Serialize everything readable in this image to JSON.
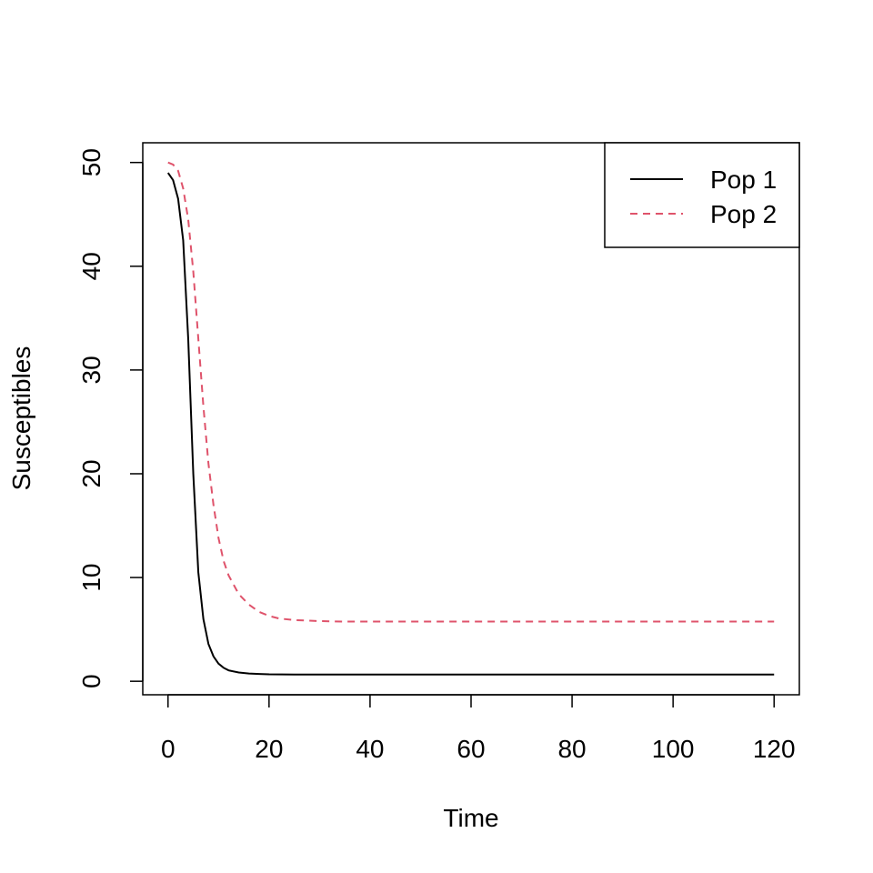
{
  "chart_data": {
    "type": "line",
    "title": "",
    "xlabel": "Time",
    "ylabel": "Susceptibles",
    "xlim": [
      -5,
      125
    ],
    "ylim": [
      -1.3,
      51.9
    ],
    "x_ticks": [
      0,
      20,
      40,
      60,
      80,
      100,
      120
    ],
    "y_ticks": [
      0,
      10,
      20,
      30,
      40,
      50
    ],
    "grid": false,
    "legend": {
      "position": "top-right"
    },
    "series": [
      {
        "name": "Pop 1",
        "color": "#000000",
        "dash": "solid",
        "x": [
          0,
          1,
          2,
          3,
          4,
          5,
          6,
          7,
          8,
          9,
          10,
          11,
          12,
          14,
          16,
          18,
          20,
          25,
          30,
          40,
          60,
          80,
          100,
          120
        ],
        "y": [
          49,
          48.3,
          46.5,
          42.5,
          33,
          20,
          10.5,
          6,
          3.6,
          2.4,
          1.7,
          1.3,
          1.05,
          0.85,
          0.75,
          0.7,
          0.67,
          0.65,
          0.65,
          0.65,
          0.65,
          0.65,
          0.65,
          0.65
        ]
      },
      {
        "name": "Pop 2",
        "color": "#df536b",
        "dash": "dashed",
        "x": [
          0,
          1,
          2,
          3,
          4,
          5,
          6,
          7,
          8,
          9,
          10,
          11,
          12,
          14,
          16,
          18,
          20,
          22,
          25,
          30,
          35,
          40,
          60,
          80,
          100,
          120
        ],
        "y": [
          50,
          49.8,
          49.2,
          47.5,
          44.5,
          39.5,
          33,
          26.5,
          21,
          17,
          13.8,
          11.6,
          10.2,
          8.4,
          7.4,
          6.7,
          6.3,
          6.05,
          5.9,
          5.8,
          5.75,
          5.75,
          5.75,
          5.75,
          5.75,
          5.75
        ]
      }
    ]
  }
}
